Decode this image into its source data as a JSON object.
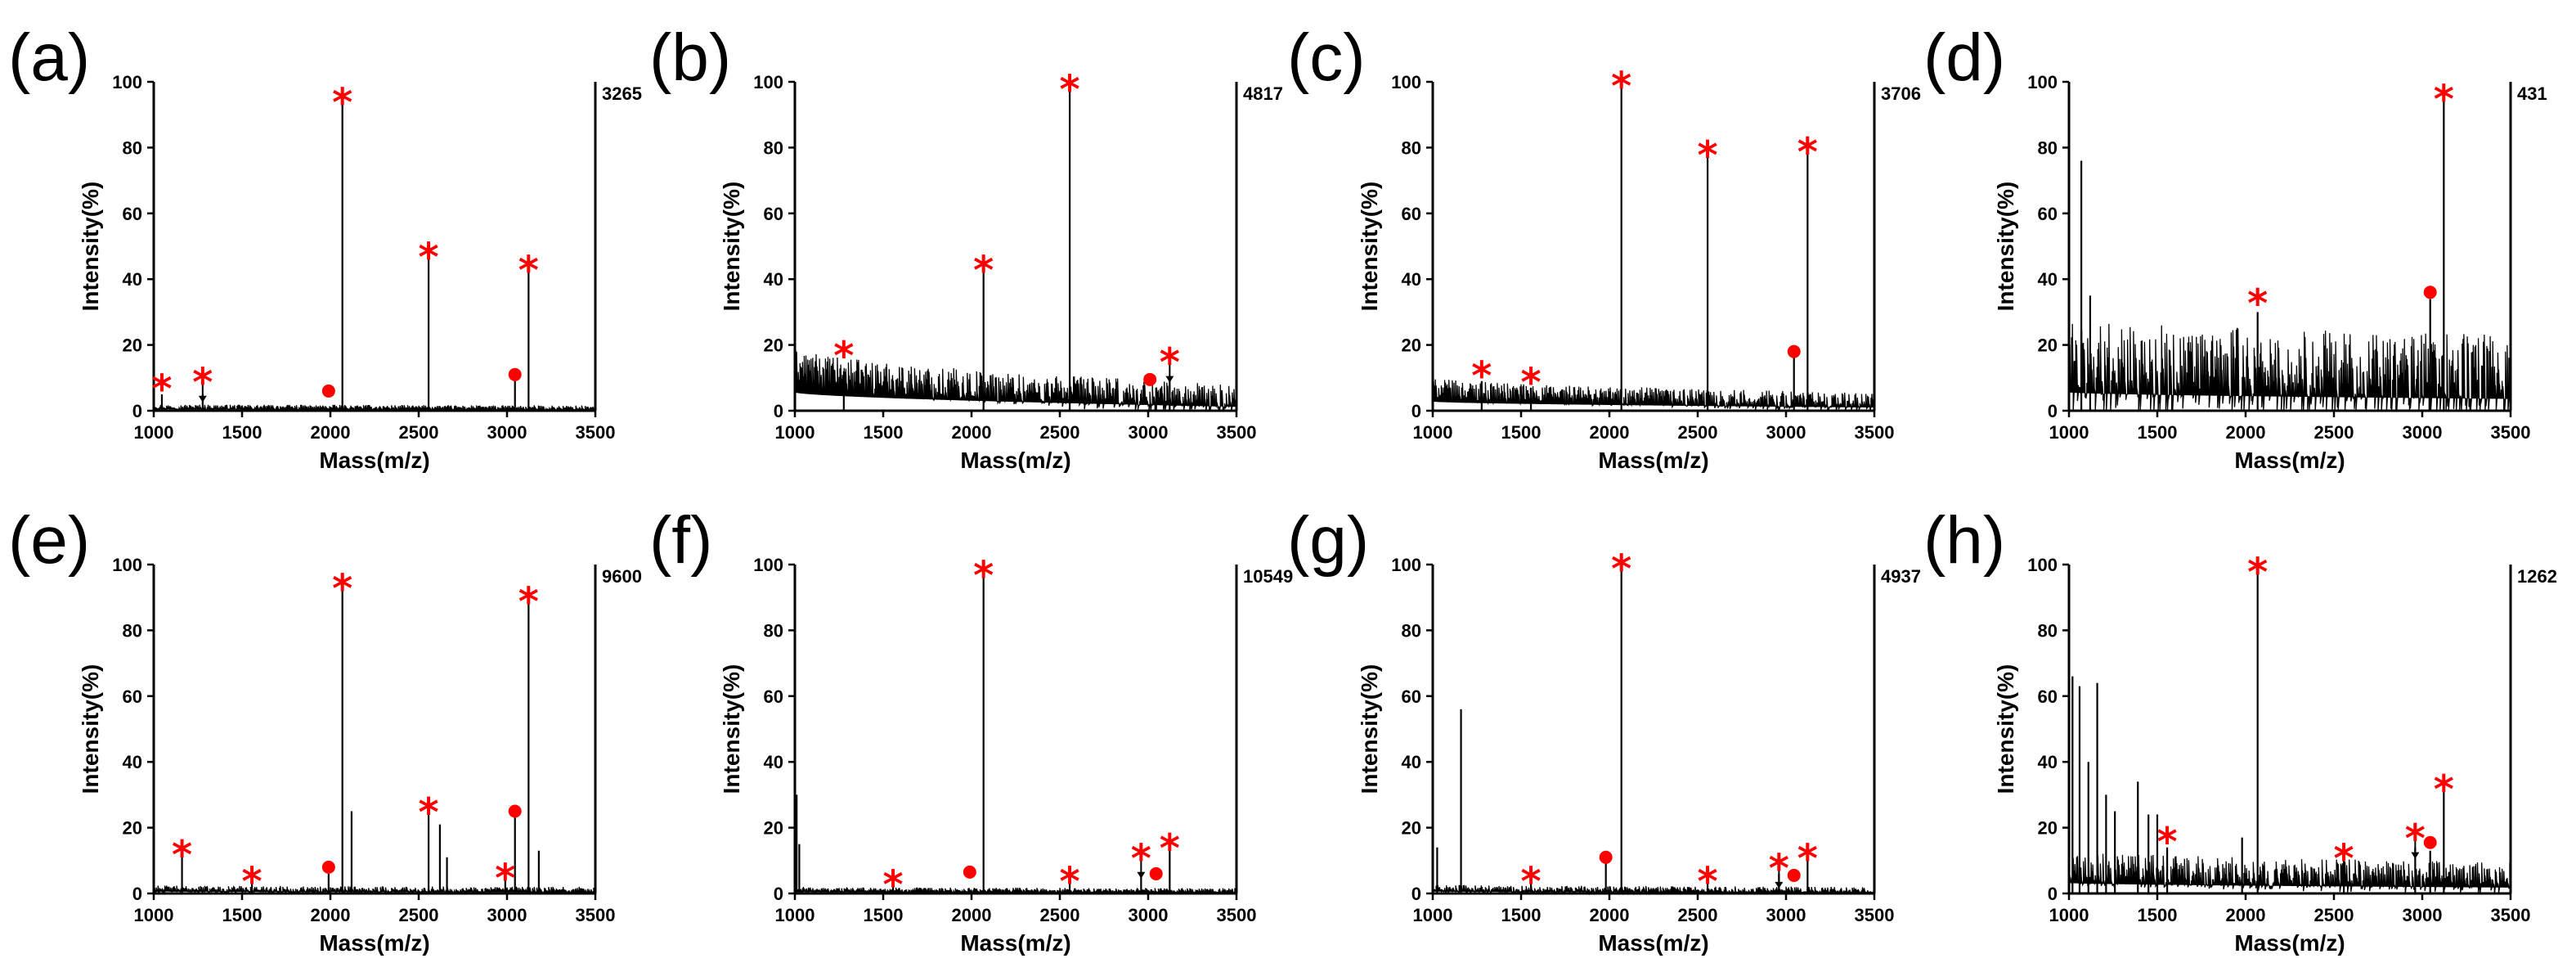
{
  "figure": {
    "marker_color": "#ff0000",
    "line_color": "#000000",
    "star_symbol": "*"
  },
  "chart_data": [
    {
      "panel": "(a)",
      "type": "line",
      "max_intensity": "3265",
      "xlabel": "Mass(m/z)",
      "ylabel": "Intensity(%)",
      "xlim": [
        1000,
        3500
      ],
      "ylim": [
        0,
        100
      ],
      "xticks": [
        1000,
        1500,
        2000,
        2500,
        3000,
        3500
      ],
      "yticks": [
        0,
        20,
        40,
        60,
        80,
        100
      ],
      "noise": {
        "start": 1.2,
        "end": 0.8,
        "amp": 0.8
      },
      "peaks": [
        {
          "x": 1046,
          "y": 5
        },
        {
          "x": 1277,
          "y": 5
        },
        {
          "x": 2068,
          "y": 96
        },
        {
          "x": 2556,
          "y": 48
        },
        {
          "x": 3045,
          "y": 10
        },
        {
          "x": 3122,
          "y": 44
        }
      ],
      "stars": [
        {
          "x": 1046,
          "y": 8
        },
        {
          "x": 1277,
          "y": 10,
          "arrow": true
        },
        {
          "x": 2068,
          "y": 95
        },
        {
          "x": 2556,
          "y": 48
        },
        {
          "x": 3122,
          "y": 44
        }
      ],
      "dots": [
        {
          "x": 1990,
          "y": 4.5
        },
        {
          "x": 3045,
          "y": 9.5
        }
      ]
    },
    {
      "panel": "(b)",
      "type": "line",
      "max_intensity": "4817",
      "xlabel": "Mass(m/z)",
      "ylabel": "Intensity(%)",
      "xlim": [
        1000,
        3500
      ],
      "ylim": [
        0,
        100
      ],
      "xticks": [
        1000,
        1500,
        2000,
        2500,
        3000,
        3500
      ],
      "yticks": [
        0,
        20,
        40,
        60,
        80,
        100
      ],
      "noise": {
        "start": 14,
        "end": 3,
        "amp": 5
      },
      "peaks": [
        {
          "x": 1277,
          "y": 12
        },
        {
          "x": 2068,
          "y": 44
        },
        {
          "x": 2556,
          "y": 100
        },
        {
          "x": 3045,
          "y": 7
        },
        {
          "x": 3122,
          "y": 10
        }
      ],
      "stars": [
        {
          "x": 1277,
          "y": 18
        },
        {
          "x": 2068,
          "y": 44
        },
        {
          "x": 2556,
          "y": 99
        },
        {
          "x": 3122,
          "y": 16,
          "arrow": true
        }
      ],
      "dots": [
        {
          "x": 3010,
          "y": 8
        }
      ]
    },
    {
      "panel": "(c)",
      "type": "line",
      "max_intensity": "3706",
      "xlabel": "Mass(m/z)",
      "ylabel": "Intensity(%)",
      "xlim": [
        1000,
        3500
      ],
      "ylim": [
        0,
        100
      ],
      "xticks": [
        1000,
        1500,
        2000,
        2500,
        3000,
        3500
      ],
      "yticks": [
        0,
        20,
        40,
        60,
        80,
        100
      ],
      "noise": {
        "start": 7,
        "end": 2.5,
        "amp": 3
      },
      "peaks": [
        {
          "x": 1277,
          "y": 9
        },
        {
          "x": 1556,
          "y": 7
        },
        {
          "x": 2068,
          "y": 100
        },
        {
          "x": 2556,
          "y": 78
        },
        {
          "x": 3045,
          "y": 17
        },
        {
          "x": 3122,
          "y": 80
        }
      ],
      "stars": [
        {
          "x": 1277,
          "y": 12
        },
        {
          "x": 1556,
          "y": 10
        },
        {
          "x": 2068,
          "y": 100
        },
        {
          "x": 2556,
          "y": 79
        },
        {
          "x": 3122,
          "y": 80
        }
      ],
      "dots": [
        {
          "x": 3045,
          "y": 16.5
        }
      ]
    },
    {
      "panel": "(d)",
      "type": "line",
      "max_intensity": "431",
      "xlabel": "Mass(m/z)",
      "ylabel": "Intensity(%)",
      "xlim": [
        1000,
        3500
      ],
      "ylim": [
        0,
        100
      ],
      "xticks": [
        1000,
        1500,
        2000,
        2500,
        3000,
        3500
      ],
      "yticks": [
        0,
        20,
        40,
        60,
        80,
        100
      ],
      "noise": {
        "start": 14,
        "end": 9,
        "amp": 14
      },
      "peaks": [
        {
          "x": 1070,
          "y": 76
        },
        {
          "x": 1120,
          "y": 35
        },
        {
          "x": 2068,
          "y": 30
        },
        {
          "x": 3045,
          "y": 34
        },
        {
          "x": 3122,
          "y": 96
        }
      ],
      "stars": [
        {
          "x": 2068,
          "y": 34
        },
        {
          "x": 3122,
          "y": 96
        }
      ],
      "dots": [
        {
          "x": 3045,
          "y": 34.5
        }
      ]
    },
    {
      "panel": "(e)",
      "type": "line",
      "max_intensity": "9600",
      "xlabel": "Mass(m/z)",
      "ylabel": "Intensity(%)",
      "xlim": [
        1000,
        3500
      ],
      "ylim": [
        0,
        100
      ],
      "xticks": [
        1000,
        1500,
        2000,
        2500,
        3000,
        3500
      ],
      "yticks": [
        0,
        20,
        40,
        60,
        80,
        100
      ],
      "noise": {
        "start": 1.5,
        "end": 1,
        "amp": 1
      },
      "peaks": [
        {
          "x": 1160,
          "y": 15
        },
        {
          "x": 1556,
          "y": 5
        },
        {
          "x": 1990,
          "y": 6
        },
        {
          "x": 2068,
          "y": 96
        },
        {
          "x": 2120,
          "y": 25
        },
        {
          "x": 2556,
          "y": 26
        },
        {
          "x": 2620,
          "y": 21
        },
        {
          "x": 2660,
          "y": 11
        },
        {
          "x": 2990,
          "y": 7
        },
        {
          "x": 3045,
          "y": 23
        },
        {
          "x": 3122,
          "y": 92
        },
        {
          "x": 3180,
          "y": 13
        }
      ],
      "stars": [
        {
          "x": 1160,
          "y": 13
        },
        {
          "x": 1556,
          "y": 5
        },
        {
          "x": 2068,
          "y": 94
        },
        {
          "x": 2556,
          "y": 26
        },
        {
          "x": 2990,
          "y": 6
        },
        {
          "x": 3122,
          "y": 90
        }
      ],
      "dots": [
        {
          "x": 1990,
          "y": 6.5
        },
        {
          "x": 3045,
          "y": 23.5
        }
      ]
    },
    {
      "panel": "(f)",
      "type": "line",
      "max_intensity": "10549",
      "xlabel": "Mass(m/z)",
      "ylabel": "Intensity(%)",
      "xlim": [
        1000,
        3500
      ],
      "ylim": [
        0,
        100
      ],
      "xticks": [
        1000,
        1500,
        2000,
        2500,
        3000,
        3500
      ],
      "yticks": [
        0,
        20,
        40,
        60,
        80,
        100
      ],
      "noise": {
        "start": 1.2,
        "end": 0.8,
        "amp": 0.8
      },
      "peaks": [
        {
          "x": 1010,
          "y": 30
        },
        {
          "x": 1025,
          "y": 15
        },
        {
          "x": 1556,
          "y": 4
        },
        {
          "x": 2068,
          "y": 99
        },
        {
          "x": 2556,
          "y": 4
        },
        {
          "x": 2960,
          "y": 6
        },
        {
          "x": 3122,
          "y": 14
        }
      ],
      "stars": [
        {
          "x": 1556,
          "y": 4
        },
        {
          "x": 2068,
          "y": 98
        },
        {
          "x": 2556,
          "y": 5
        },
        {
          "x": 2960,
          "y": 12,
          "arrow": true
        },
        {
          "x": 3122,
          "y": 15
        }
      ],
      "dots": [
        {
          "x": 1990,
          "y": 5
        },
        {
          "x": 3045,
          "y": 4.5
        }
      ]
    },
    {
      "panel": "(g)",
      "type": "line",
      "max_intensity": "4937",
      "xlabel": "Mass(m/z)",
      "ylabel": "Intensity(%)",
      "xlim": [
        1000,
        3500
      ],
      "ylim": [
        0,
        100
      ],
      "xticks": [
        1000,
        1500,
        2000,
        2500,
        3000,
        3500
      ],
      "yticks": [
        0,
        20,
        40,
        60,
        80,
        100
      ],
      "noise": {
        "start": 1.5,
        "end": 0.8,
        "amp": 1.2
      },
      "peaks": [
        {
          "x": 1025,
          "y": 14
        },
        {
          "x": 1160,
          "y": 56
        },
        {
          "x": 1556,
          "y": 4
        },
        {
          "x": 1980,
          "y": 10
        },
        {
          "x": 2068,
          "y": 100
        },
        {
          "x": 2556,
          "y": 4
        },
        {
          "x": 2960,
          "y": 6
        },
        {
          "x": 3122,
          "y": 14
        }
      ],
      "stars": [
        {
          "x": 1556,
          "y": 5
        },
        {
          "x": 2068,
          "y": 100
        },
        {
          "x": 2556,
          "y": 5
        },
        {
          "x": 2960,
          "y": 9,
          "arrow": true
        },
        {
          "x": 3122,
          "y": 12
        }
      ],
      "dots": [
        {
          "x": 1980,
          "y": 9.5
        },
        {
          "x": 3045,
          "y": 4
        }
      ]
    },
    {
      "panel": "(h)",
      "type": "line",
      "max_intensity": "1262",
      "xlabel": "Mass(m/z)",
      "ylabel": "Intensity(%)",
      "xlim": [
        1000,
        3500
      ],
      "ylim": [
        0,
        100
      ],
      "xticks": [
        1000,
        1500,
        2000,
        2500,
        3000,
        3500
      ],
      "yticks": [
        0,
        20,
        40,
        60,
        80,
        100
      ],
      "noise": {
        "start": 8,
        "end": 4.5,
        "amp": 5
      },
      "peaks": [
        {
          "x": 1020,
          "y": 66
        },
        {
          "x": 1060,
          "y": 63
        },
        {
          "x": 1110,
          "y": 40
        },
        {
          "x": 1160,
          "y": 64
        },
        {
          "x": 1210,
          "y": 30
        },
        {
          "x": 1260,
          "y": 25
        },
        {
          "x": 1390,
          "y": 34
        },
        {
          "x": 1450,
          "y": 24
        },
        {
          "x": 1500,
          "y": 24
        },
        {
          "x": 1556,
          "y": 14
        },
        {
          "x": 1980,
          "y": 17
        },
        {
          "x": 2068,
          "y": 100
        },
        {
          "x": 2556,
          "y": 10
        },
        {
          "x": 2960,
          "y": 14
        },
        {
          "x": 3045,
          "y": 13
        },
        {
          "x": 3122,
          "y": 33
        }
      ],
      "stars": [
        {
          "x": 1556,
          "y": 17
        },
        {
          "x": 2068,
          "y": 99
        },
        {
          "x": 2556,
          "y": 12
        },
        {
          "x": 2960,
          "y": 18,
          "arrow": true
        },
        {
          "x": 3122,
          "y": 33
        }
      ],
      "dots": [
        {
          "x": 3045,
          "y": 14
        }
      ]
    }
  ]
}
